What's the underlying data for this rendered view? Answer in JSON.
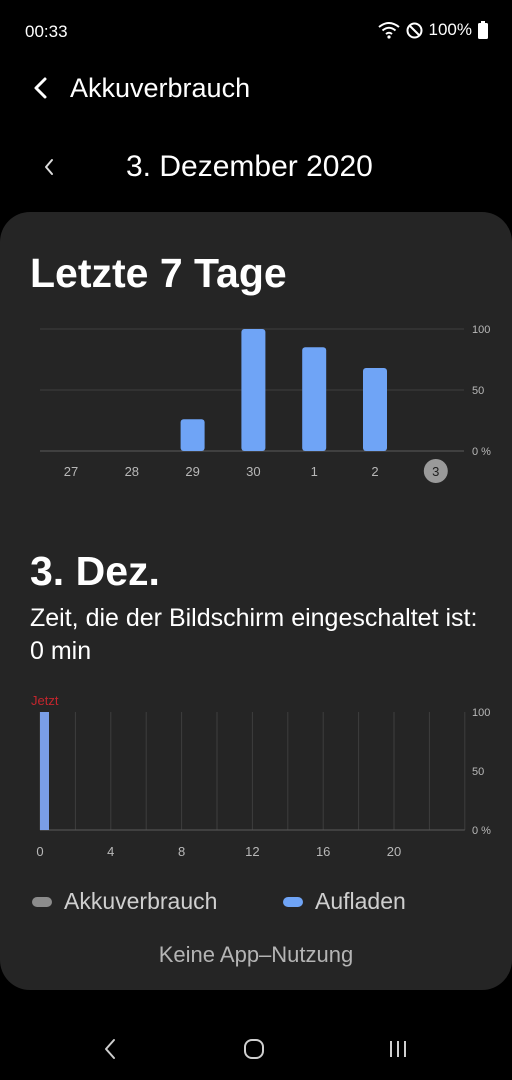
{
  "status_bar": {
    "time": "00:33",
    "battery_text": "100%",
    "icons": [
      "wifi-icon",
      "do-not-disturb-icon",
      "battery-icon"
    ]
  },
  "header": {
    "title": "Akkuverbrauch",
    "back_icon": "back-arrow-icon"
  },
  "date_nav": {
    "date": "3. Dezember 2020",
    "prev_icon": "chevron-left-icon"
  },
  "week_section": {
    "title": "Letzte 7 Tage"
  },
  "day_section": {
    "title": "3. Dez.",
    "screen_time": "Zeit, die der Bildschirm eingeschaltet ist: 0 min"
  },
  "legend": {
    "usage": "Akkuverbrauch",
    "charging": "Aufladen"
  },
  "footer": {
    "no_usage": "Keine App–Nutzung"
  },
  "nav_bar": {
    "icons": [
      "nav-back-icon",
      "nav-home-icon",
      "nav-recent-apps-icon"
    ]
  },
  "colors": {
    "background": "#000000",
    "card": "#252525",
    "bar_charging": "#6fa4f6",
    "bar_charging_dim": "#7a9ee6",
    "usage_legend": "#8c8c8c",
    "now_label": "#c3262d",
    "selected_day_badge": "#9a9a9a"
  },
  "chart_data": [
    {
      "type": "bar",
      "title": "Letzte 7 Tage",
      "categories": [
        "27",
        "28",
        "29",
        "30",
        "1",
        "2",
        "3"
      ],
      "values": [
        0,
        0,
        26,
        100,
        85,
        68,
        0
      ],
      "selected_category": "3",
      "y_ticks": [
        "0 %",
        "50",
        "100"
      ],
      "ylim": [
        0,
        100
      ],
      "grid": true
    },
    {
      "type": "bar",
      "title": "3. Dez.",
      "now_label": "Jetzt",
      "x_tick_labels": [
        "0",
        "4",
        "8",
        "12",
        "16",
        "20"
      ],
      "xlim": [
        0,
        24
      ],
      "bars": [
        {
          "x": 0,
          "value": 100,
          "series": "Aufladen"
        }
      ],
      "y_ticks": [
        "0 %",
        "50",
        "100"
      ],
      "ylim": [
        0,
        100
      ],
      "grid": true,
      "legend": [
        "Akkuverbrauch",
        "Aufladen"
      ]
    }
  ]
}
